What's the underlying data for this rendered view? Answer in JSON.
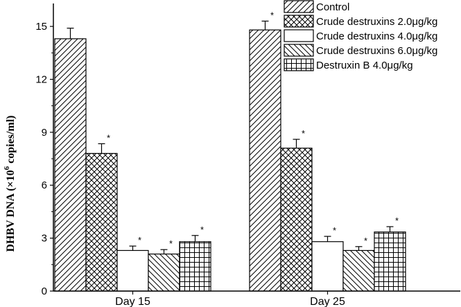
{
  "chart_data": {
    "type": "bar",
    "categories": [
      "Day 15",
      "Day 25"
    ],
    "ylabel": {
      "pre": "DHBV DNA (×10",
      "sup": "6",
      "post": " copies/ml)"
    },
    "ylim": [
      0,
      16.3
    ],
    "yticks": [
      0,
      3,
      6,
      9,
      12,
      15
    ],
    "grid": false,
    "legend_position": "top-right",
    "series": [
      {
        "name": "Control",
        "pattern": "diag-right",
        "values": [
          14.3,
          14.8
        ],
        "errors": [
          0.6,
          0.5
        ],
        "significant": [
          false,
          true
        ]
      },
      {
        "name": "Crude destruxins 2.0μg/kg",
        "pattern": "crosshatch",
        "values": [
          7.8,
          8.1
        ],
        "errors": [
          0.55,
          0.5
        ],
        "significant": [
          true,
          true
        ]
      },
      {
        "name": "Crude destruxins 4.0μg/kg",
        "pattern": "blank",
        "values": [
          2.3,
          2.8
        ],
        "errors": [
          0.25,
          0.3
        ],
        "significant": [
          true,
          true
        ]
      },
      {
        "name": "Crude destruxins 6.0μg/kg",
        "pattern": "diag-left",
        "values": [
          2.1,
          2.3
        ],
        "errors": [
          0.25,
          0.22
        ],
        "significant": [
          true,
          true
        ]
      },
      {
        "name": "Destruxin B 4.0μg/kg",
        "pattern": "grid",
        "values": [
          2.8,
          3.35
        ],
        "errors": [
          0.35,
          0.3
        ],
        "significant": [
          true,
          true
        ]
      }
    ],
    "significance_mark": "*"
  }
}
